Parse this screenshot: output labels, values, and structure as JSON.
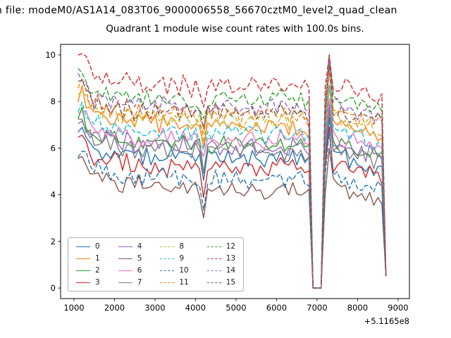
{
  "header": {
    "file_line": "n file: modeM0/AS1A14_083T06_9000006558_56670cztM0_level2_quad_clean"
  },
  "chart_data": {
    "type": "line",
    "title": "Quadrant 1 module wise count rates with 100.0s bins.",
    "xlabel": "",
    "ylabel": "",
    "x_offset_text": "+5.1165e8",
    "x_ticks": [
      1000,
      2000,
      3000,
      4000,
      5000,
      6000,
      7000,
      8000,
      9000
    ],
    "y_ticks": [
      0,
      2,
      4,
      6,
      8,
      10
    ],
    "xlim": [
      670,
      9280
    ],
    "ylim": [
      -0.45,
      10.45
    ],
    "x_start": 1100,
    "x_step": 100,
    "n_points": 77,
    "bin_seconds": 100.0,
    "grid": false,
    "legend_position": "lower left",
    "legend_ncol": 4,
    "blackout_indices": [
      58,
      59,
      60
    ],
    "spike_index": 62,
    "spike_amplitude": 1.8,
    "final_point_value": 0.5,
    "value_cap": 10.0,
    "noise_amplitude": 0.35,
    "shape_deltas": [
      1.2,
      1.5,
      1.0,
      0.7,
      0.4,
      0.6,
      0.3,
      0.5,
      0.2,
      0.4,
      0.3,
      0.1,
      0.4,
      0.2,
      0.0,
      0.3,
      0.1,
      0.2,
      0.0,
      0.2,
      0.1,
      0.3,
      0.0,
      0.2,
      0.1,
      0.0,
      0.2,
      0.1,
      -0.1,
      0.1,
      0.0,
      -0.9,
      0.1,
      0.0,
      0.2,
      0.0,
      0.1,
      0.2,
      0.0,
      0.1,
      -0.1,
      0.1,
      0.0,
      0.2,
      0.0,
      0.1,
      -0.1,
      0.0,
      0.1,
      0.0,
      0.2,
      0.0,
      -0.1,
      0.1,
      0.0,
      0.1,
      0.0,
      -0.2,
      0,
      0,
      0,
      0.0,
      1.8,
      0.2,
      0.1,
      0.0,
      0.1,
      -0.1,
      0.0,
      -0.2,
      -0.1,
      -0.3,
      -0.2,
      -0.4,
      -0.3,
      -0.5,
      0.0
    ],
    "series": [
      {
        "label": "0",
        "color": "#1f77b4",
        "dashed": false,
        "base": 5.5
      },
      {
        "label": "1",
        "color": "#ff7f0e",
        "dashed": false,
        "base": 6.9
      },
      {
        "label": "2",
        "color": "#2ca02c",
        "dashed": false,
        "base": 6.1
      },
      {
        "label": "3",
        "color": "#d62728",
        "dashed": false,
        "base": 5.1
      },
      {
        "label": "4",
        "color": "#9467bd",
        "dashed": false,
        "base": 6.0
      },
      {
        "label": "5",
        "color": "#8c564b",
        "dashed": false,
        "base": 4.2
      },
      {
        "label": "6",
        "color": "#e377c2",
        "dashed": false,
        "base": 6.3
      },
      {
        "label": "7",
        "color": "#7f7f7f",
        "dashed": false,
        "base": 5.8
      },
      {
        "label": "8",
        "color": "#bcbd22",
        "dashed": true,
        "base": 7.2
      },
      {
        "label": "9",
        "color": "#17becf",
        "dashed": true,
        "base": 6.6
      },
      {
        "label": "10",
        "color": "#1f77b4",
        "dashed": true,
        "base": 4.6
      },
      {
        "label": "11",
        "color": "#ff7f0e",
        "dashed": true,
        "base": 7.4
      },
      {
        "label": "12",
        "color": "#2ca02c",
        "dashed": true,
        "base": 8.0
      },
      {
        "label": "13",
        "color": "#d62728",
        "dashed": true,
        "base": 8.6
      },
      {
        "label": "14",
        "color": "#9467bd",
        "dashed": true,
        "base": 7.7
      },
      {
        "label": "15",
        "color": "#8c564b",
        "dashed": true,
        "base": 7.5
      }
    ]
  }
}
